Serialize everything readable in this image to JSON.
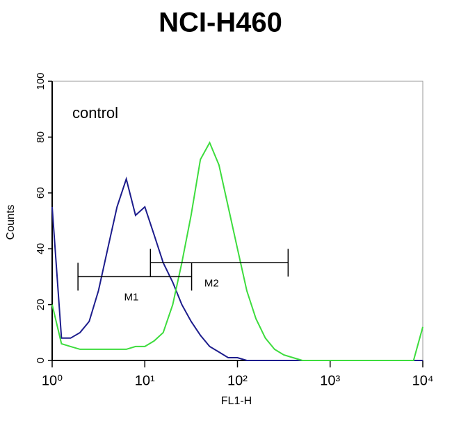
{
  "chart_data": {
    "type": "line",
    "title": "NCI-H460",
    "xlabel": "FL1-H",
    "ylabel": "Counts",
    "xscale": "log",
    "x": [
      1,
      1.26,
      1.58,
      2,
      2.51,
      3.16,
      3.98,
      5.01,
      6.31,
      7.94,
      10,
      12.6,
      15.8,
      20,
      25.1,
      31.6,
      39.8,
      50.1,
      63.1,
      79.4,
      100,
      126,
      158,
      200,
      251,
      316,
      398,
      501,
      631,
      794,
      1000,
      1260,
      1580,
      2000,
      2510,
      3160,
      3980,
      5010,
      6310,
      7940,
      10000
    ],
    "series": [
      {
        "name": "control",
        "color": "#1c1c8c",
        "values": [
          55,
          8,
          8,
          10,
          14,
          25,
          40,
          55,
          65,
          52,
          55,
          45,
          35,
          28,
          20,
          14,
          9,
          5,
          3,
          1,
          1,
          0,
          0,
          0,
          0,
          0,
          0,
          0,
          0,
          0,
          0,
          0,
          0,
          0,
          0,
          0,
          0,
          0,
          0,
          0,
          0
        ]
      },
      {
        "color": "#3ddc3d",
        "values": [
          20,
          6,
          5,
          4,
          4,
          4,
          4,
          4,
          4,
          5,
          5,
          7,
          10,
          20,
          35,
          52,
          72,
          78,
          70,
          55,
          40,
          25,
          15,
          8,
          4,
          2,
          1,
          0,
          0,
          0,
          0,
          0,
          0,
          0,
          0,
          0,
          0,
          0,
          0,
          0,
          12
        ]
      }
    ],
    "markers": [
      {
        "label": "M1",
        "range": [
          1.9,
          32
        ],
        "level": 30
      },
      {
        "label": "M2",
        "range": [
          11.5,
          352
        ],
        "level": 35
      }
    ],
    "xlim": [
      1,
      10000
    ],
    "xticks": [
      {
        "value": 1,
        "label": "10⁰"
      },
      {
        "value": 10,
        "label": "10¹"
      },
      {
        "value": 100,
        "label": "10²"
      },
      {
        "value": 1000,
        "label": "10³"
      },
      {
        "value": 10000,
        "label": "10⁴"
      }
    ],
    "ylim": [
      0,
      100
    ],
    "yticks": [
      0,
      20,
      40,
      60,
      80,
      100
    ]
  }
}
